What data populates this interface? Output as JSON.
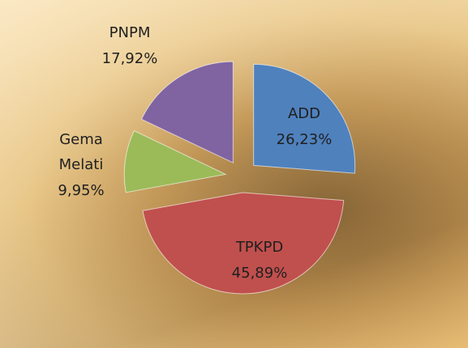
{
  "chart_data": {
    "type": "pie",
    "categories": [
      "ADD",
      "TPKPD",
      "Gema Melati",
      "PNPM"
    ],
    "values": [
      26.23,
      45.89,
      9.95,
      17.92
    ],
    "value_labels": [
      "26,23%",
      "45,89%",
      "9,95%",
      "17,92%"
    ],
    "colors": [
      "#4f81bd",
      "#c0504d",
      "#9bbb59",
      "#8064a2"
    ]
  }
}
